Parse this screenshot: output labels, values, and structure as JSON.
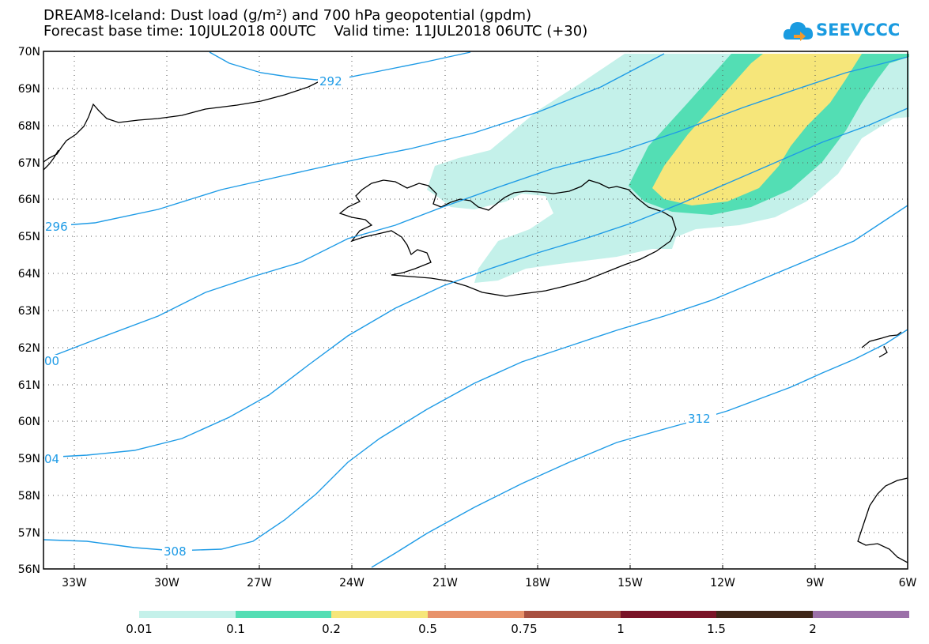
{
  "title": {
    "line1": "DREAM8-Iceland: Dust load (g/m²) and 700 hPa geopotential (gpdm)",
    "line2": "Forecast base time: 10JUL2018 00UTC    Valid time: 11JUL2018 06UTC (+30)"
  },
  "logo": {
    "text": "SEEVCCC",
    "icon": "cloud-logo-icon",
    "color": "#1a9be0"
  },
  "map": {
    "lat_labels": [
      "70N",
      "69N",
      "68N",
      "67N",
      "66N",
      "65N",
      "64N",
      "63N",
      "62N",
      "61N",
      "60N",
      "59N",
      "58N",
      "57N",
      "56N"
    ],
    "lon_labels": [
      "33W",
      "30W",
      "27W",
      "24W",
      "21W",
      "18W",
      "15W",
      "12W",
      "9W",
      "6W"
    ],
    "contour_color": "#1e9be6",
    "contour_labels": [
      "292",
      "296",
      "00",
      "04",
      "308",
      "312"
    ]
  },
  "colorbar": {
    "colors": [
      "#c4f1ea",
      "#53deb4",
      "#f6e67a",
      "#e8926a",
      "#a85040",
      "#7a1428",
      "#3e2618",
      "#9b70a8"
    ],
    "labels": [
      "0.01",
      "0.1",
      "0.2",
      "0.5",
      "0.75",
      "1",
      "1.5",
      "2"
    ]
  }
}
